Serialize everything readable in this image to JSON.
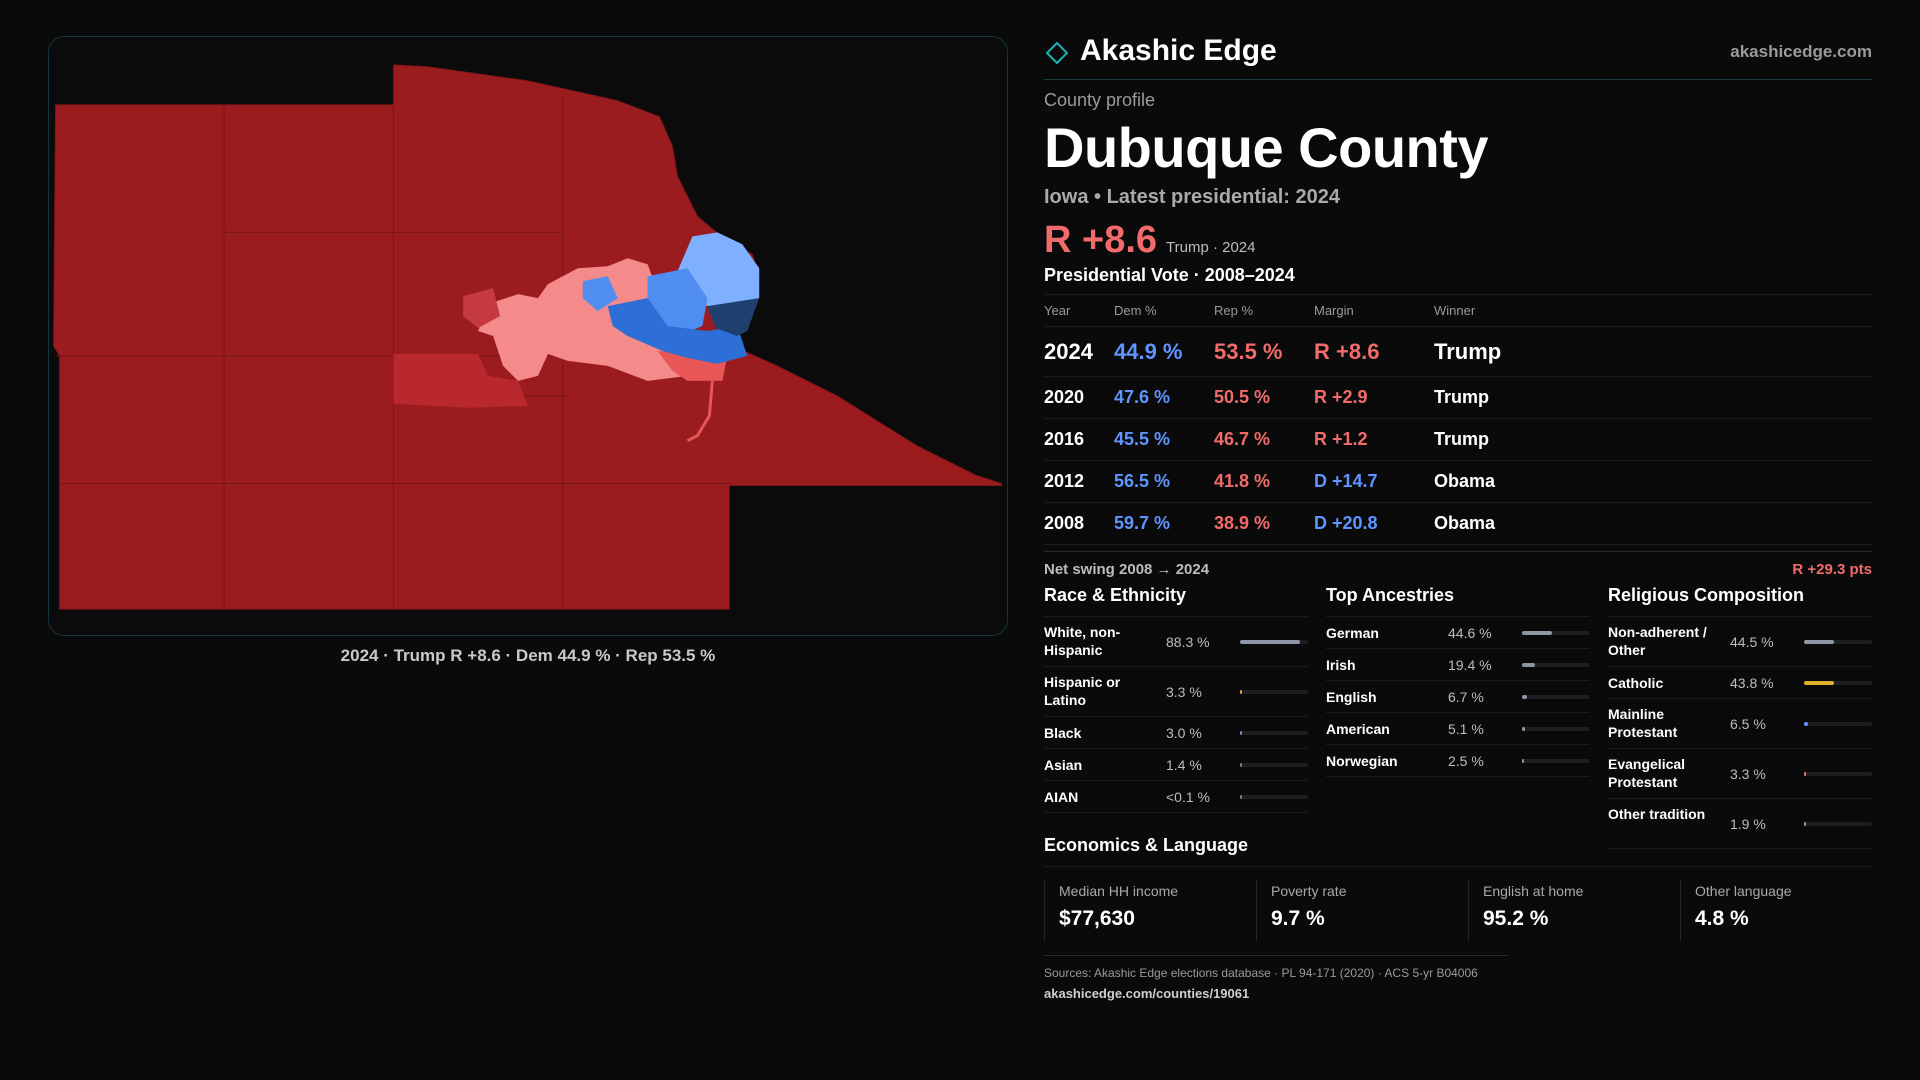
{
  "brand": {
    "name": "Akashic Edge",
    "url": "akashicedge.com",
    "accent": "#1bb3b3"
  },
  "profile": {
    "label": "County profile",
    "county": "Dubuque County",
    "subtitle": "Iowa • Latest presidential: 2024",
    "margin": "R +8.6",
    "margin_note": "Trump · 2024"
  },
  "map": {
    "caption": "2024 · Trump R +8.6 · Dem 44.9 % · Rep 53.5 %",
    "colors": {
      "rep_strong": "#9b1c1f",
      "rep_mid": "#b8282c",
      "rep_light": "#f48a8a",
      "rep_med": "#e85656",
      "dem_light": "#7fb0ff",
      "dem_mid": "#4f8ef0",
      "dem_strong": "#2d6fd6",
      "dem_dark": "#1f3f6e"
    }
  },
  "votes": {
    "title": "Presidential Vote · 2008–2024",
    "headers": {
      "year": "Year",
      "dem": "Dem %",
      "rep": "Rep %",
      "margin": "Margin",
      "winner": "Winner"
    },
    "rows": [
      {
        "year": "2024",
        "dem": "44.9 %",
        "rep": "53.5 %",
        "margin": "R +8.6",
        "winner": "Trump"
      },
      {
        "year": "2020",
        "dem": "47.6 %",
        "rep": "50.5 %",
        "margin": "R +2.9",
        "winner": "Trump"
      },
      {
        "year": "2016",
        "dem": "45.5 %",
        "rep": "46.7 %",
        "margin": "R +1.2",
        "winner": "Trump"
      },
      {
        "year": "2012",
        "dem": "56.5 %",
        "rep": "41.8 %",
        "margin": "D +14.7",
        "winner": "Obama"
      },
      {
        "year": "2008",
        "dem": "59.7 %",
        "rep": "38.9 %",
        "margin": "D +20.8",
        "winner": "Obama"
      }
    ],
    "swing_label": "Net swing 2008 → 2024",
    "swing_value": "R +29.3 pts"
  },
  "race": {
    "title": "Race & Ethnicity",
    "items": [
      {
        "label": "White, non-Hispanic",
        "value": "88.3 %",
        "pct": 88.3,
        "color": "#8e97a6"
      },
      {
        "label": "Hispanic or Latino",
        "value": "3.3 %",
        "pct": 3.3,
        "color": "#d9a12a"
      },
      {
        "label": "Black",
        "value": "3.0 %",
        "pct": 3.0,
        "color": "#8a7fd6"
      },
      {
        "label": "Asian",
        "value": "1.4 %",
        "pct": 1.4,
        "color": "#6f7c8c"
      },
      {
        "label": "AIAN",
        "value": "<0.1 %",
        "pct": 0.1,
        "color": "#6f7c8c"
      }
    ]
  },
  "ancestry": {
    "title": "Top Ancestries",
    "items": [
      {
        "label": "German",
        "value": "44.6 %",
        "pct": 44.6,
        "color": "#8e97a6"
      },
      {
        "label": "Irish",
        "value": "19.4 %",
        "pct": 19.4,
        "color": "#8e97a6"
      },
      {
        "label": "English",
        "value": "6.7 %",
        "pct": 6.7,
        "color": "#8e97a6"
      },
      {
        "label": "American",
        "value": "5.1 %",
        "pct": 5.1,
        "color": "#8e97a6"
      },
      {
        "label": "Norwegian",
        "value": "2.5 %",
        "pct": 2.5,
        "color": "#8e97a6"
      }
    ]
  },
  "religion": {
    "title": "Religious Composition",
    "items": [
      {
        "label": "Non-adherent / Other",
        "value": "44.5 %",
        "pct": 44.5,
        "color": "#8e97a6"
      },
      {
        "label": "Catholic",
        "value": "43.8 %",
        "pct": 43.8,
        "color": "#e0b12e"
      },
      {
        "label": "Mainline Protestant",
        "value": "6.5 %",
        "pct": 6.5,
        "color": "#5f95ff"
      },
      {
        "label": "Evangelical Protestant",
        "value": "3.3 %",
        "pct": 3.3,
        "color": "#f26b6b"
      },
      {
        "label": "Other tradition",
        "value": "1.9 %",
        "pct": 1.9,
        "color": "#8e97a6"
      }
    ]
  },
  "economics": {
    "title": "Economics & Language",
    "cells": [
      {
        "label": "Median HH income",
        "value": "$77,630"
      },
      {
        "label": "Poverty rate",
        "value": "9.7 %"
      },
      {
        "label": "English at home",
        "value": "95.2 %"
      },
      {
        "label": "Other language",
        "value": "4.8 %"
      }
    ]
  },
  "sources": {
    "line1": "Sources: Akashic Edge elections database · PL 94-171 (2020) · ACS 5-yr B04006",
    "line2": "akashicedge.com/counties/19061"
  }
}
